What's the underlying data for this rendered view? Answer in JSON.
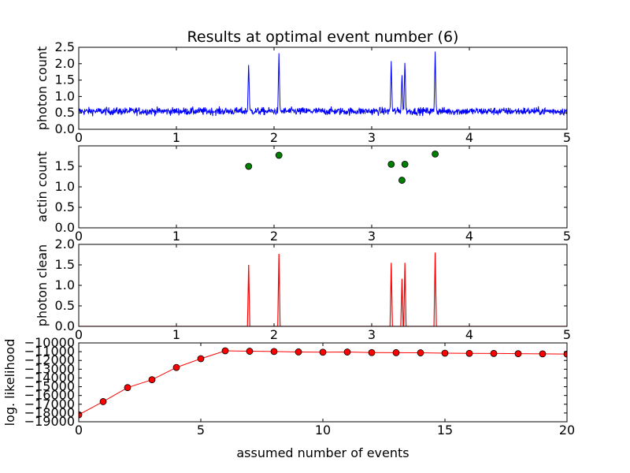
{
  "figure": {
    "title": "Results at optimal event number (6)"
  },
  "chart_data": [
    {
      "type": "line",
      "ylabel": "photon count",
      "xlabel": "",
      "xlim": [
        0,
        5
      ],
      "ylim": [
        0,
        2.5
      ],
      "x_ticks": [
        "0",
        "1",
        "2",
        "3",
        "4",
        "5"
      ],
      "y_ticks": [
        "0.0",
        "0.5",
        "1.0",
        "1.5",
        "2.0",
        "2.5"
      ],
      "grid": false,
      "color": "#0000ff",
      "baseline": 0.55,
      "noise": 0.2,
      "peaks": [
        {
          "x": 1.74,
          "y": 2.05
        },
        {
          "x": 2.05,
          "y": 2.32
        },
        {
          "x": 3.2,
          "y": 2.08
        },
        {
          "x": 3.31,
          "y": 1.72
        },
        {
          "x": 3.34,
          "y": 2.12
        },
        {
          "x": 3.65,
          "y": 2.37
        }
      ]
    },
    {
      "type": "scatter",
      "ylabel": "actin count",
      "xlabel": "",
      "xlim": [
        0,
        5
      ],
      "ylim": [
        0,
        2.0
      ],
      "x_ticks": [
        "0",
        "1",
        "2",
        "3",
        "4",
        "5"
      ],
      "y_ticks": [
        "0.0",
        "0.5",
        "1.0",
        "1.5"
      ],
      "grid": false,
      "color": "#008000",
      "points": [
        {
          "x": 1.74,
          "y": 1.5
        },
        {
          "x": 2.05,
          "y": 1.77
        },
        {
          "x": 3.2,
          "y": 1.55
        },
        {
          "x": 3.31,
          "y": 1.16
        },
        {
          "x": 3.34,
          "y": 1.55
        },
        {
          "x": 3.65,
          "y": 1.8
        }
      ]
    },
    {
      "type": "line",
      "ylabel": "photon clean",
      "xlabel": "",
      "xlim": [
        0,
        5
      ],
      "ylim": [
        0,
        2.0
      ],
      "x_ticks": [
        "0",
        "1",
        "2",
        "3",
        "4",
        "5"
      ],
      "y_ticks": [
        "0.0",
        "0.5",
        "1.0",
        "1.5",
        "2.0"
      ],
      "grid": false,
      "color": "#ff0000",
      "spikes": [
        {
          "x": 1.74,
          "y": 1.5
        },
        {
          "x": 2.05,
          "y": 1.77
        },
        {
          "x": 3.2,
          "y": 1.55
        },
        {
          "x": 3.31,
          "y": 1.16
        },
        {
          "x": 3.34,
          "y": 1.55
        },
        {
          "x": 3.65,
          "y": 1.8
        }
      ]
    },
    {
      "type": "line",
      "ylabel": "log. likelihood",
      "xlabel": "assumed number of events",
      "xlim": [
        0,
        20
      ],
      "ylim": [
        -19000,
        -10000
      ],
      "x_ticks": [
        "0",
        "5",
        "10",
        "15",
        "20"
      ],
      "y_ticks": [
        "−19000",
        "−18000",
        "−17000",
        "−16000",
        "−15000",
        "−14000",
        "−13000",
        "−12000",
        "−11000",
        "−10000"
      ],
      "grid": false,
      "color": "#ff0000",
      "marker_color": "#ff0000",
      "x": [
        0,
        1,
        2,
        3,
        4,
        5,
        6,
        7,
        8,
        9,
        10,
        11,
        12,
        13,
        14,
        15,
        16,
        17,
        18,
        19,
        20
      ],
      "values": [
        -18200,
        -16700,
        -15100,
        -14200,
        -12800,
        -11800,
        -10900,
        -10950,
        -10980,
        -11030,
        -11060,
        -11040,
        -11100,
        -11110,
        -11130,
        -11170,
        -11190,
        -11200,
        -11230,
        -11250,
        -11270
      ]
    }
  ]
}
